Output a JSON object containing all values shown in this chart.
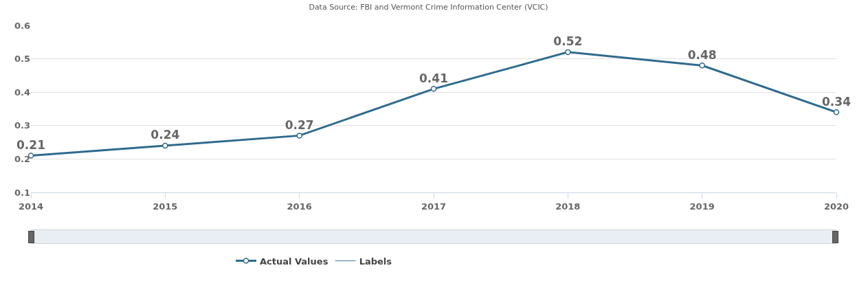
{
  "chart_data": {
    "type": "line",
    "title": "Data Source: FBI and Vermont Crime Information Center (VCIC)",
    "x": [
      2014,
      2015,
      2016,
      2017,
      2018,
      2019,
      2020
    ],
    "series": [
      {
        "name": "Actual Values",
        "color": "#2e6a8e",
        "values": [
          0.21,
          0.24,
          0.27,
          0.41,
          0.52,
          0.48,
          0.34
        ]
      },
      {
        "name": "Labels",
        "color": "#7a9cc0",
        "values": [
          null,
          null,
          null,
          null,
          null,
          null,
          null
        ]
      }
    ],
    "xlim": [
      2014,
      2020
    ],
    "xticks": [
      2014,
      2015,
      2016,
      2017,
      2018,
      2019,
      2020
    ],
    "ylim": [
      0.1,
      0.6
    ],
    "yticks": [
      0.1,
      0.2,
      0.3,
      0.4,
      0.5,
      0.6
    ],
    "grid": "y",
    "legend": "bottom",
    "marker": "circle",
    "line_style": "solid",
    "data_labels": true
  }
}
